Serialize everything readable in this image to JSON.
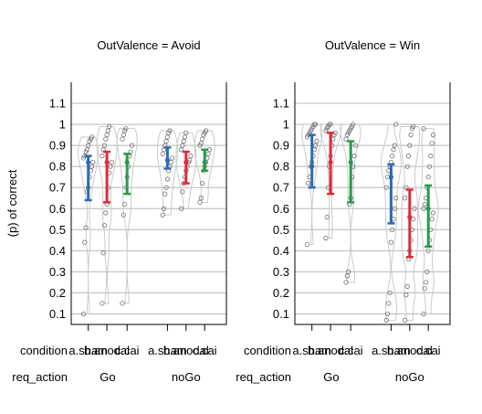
{
  "chart_data": {
    "type": "violin",
    "ylabel": "(p) of correct",
    "ylim": [
      0.05,
      1.2
    ],
    "yticks": [
      0.1,
      0.2,
      0.3,
      0.4,
      0.5,
      0.6,
      0.7,
      0.8,
      0.9,
      1,
      1.1
    ],
    "ytick_labels": [
      "0.1",
      "0.2",
      "0.3",
      "0.4",
      "0.5",
      "0.6",
      "0.7",
      "0.8",
      "0.9",
      "1",
      "1.1"
    ],
    "grid": true,
    "x_row_titles": [
      "condition",
      "req_action"
    ],
    "colors": {
      "a.sham": "#2b6cb0",
      "b.anodal": "#e02a3a",
      "c.cai": "#2a9a4a"
    },
    "panels": [
      {
        "title": "OutValence = Avoid",
        "groups": [
          {
            "label": "Go",
            "conditions": [
              {
                "label": "a.sham",
                "median": 0.82,
                "ci_low": 0.64,
                "ci_high": 0.85,
                "points": [
                  0.94,
                  0.93,
                  0.92,
                  0.9,
                  0.88,
                  0.87,
                  0.85,
                  0.84,
                  0.82,
                  0.8,
                  0.78,
                  0.75,
                  0.7,
                  0.68,
                  0.51,
                  0.44,
                  0.1
                ]
              },
              {
                "label": "b.anodal",
                "median": 0.82,
                "ci_low": 0.63,
                "ci_high": 0.87,
                "points": [
                  0.99,
                  0.97,
                  0.95,
                  0.93,
                  0.9,
                  0.88,
                  0.85,
                  0.82,
                  0.8,
                  0.77,
                  0.7,
                  0.62,
                  0.58,
                  0.52,
                  0.39,
                  0.15
                ]
              },
              {
                "label": "c.cai",
                "median": 0.82,
                "ci_low": 0.67,
                "ci_high": 0.86,
                "points": [
                  0.98,
                  0.97,
                  0.95,
                  0.93,
                  0.9,
                  0.87,
                  0.85,
                  0.8,
                  0.75,
                  0.7,
                  0.62,
                  0.57,
                  0.15
                ]
              }
            ]
          },
          {
            "label": "noGo",
            "conditions": [
              {
                "label": "a.sham",
                "median": 0.83,
                "ci_low": 0.79,
                "ci_high": 0.89,
                "points": [
                  0.97,
                  0.96,
                  0.94,
                  0.92,
                  0.9,
                  0.88,
                  0.86,
                  0.84,
                  0.82,
                  0.8,
                  0.78,
                  0.74,
                  0.7,
                  0.67,
                  0.6,
                  0.57
                ]
              },
              {
                "label": "b.anodal",
                "median": 0.82,
                "ci_low": 0.72,
                "ci_high": 0.87,
                "points": [
                  0.96,
                  0.94,
                  0.92,
                  0.9,
                  0.88,
                  0.85,
                  0.83,
                  0.82,
                  0.8,
                  0.78,
                  0.75,
                  0.72,
                  0.68,
                  0.6
                ]
              },
              {
                "label": "c.cai",
                "median": 0.82,
                "ci_low": 0.78,
                "ci_high": 0.88,
                "points": [
                  0.97,
                  0.96,
                  0.95,
                  0.93,
                  0.91,
                  0.9,
                  0.88,
                  0.86,
                  0.84,
                  0.82,
                  0.8,
                  0.78,
                  0.72,
                  0.65,
                  0.63
                ]
              }
            ]
          }
        ]
      },
      {
        "title": "OutValence = Win",
        "groups": [
          {
            "label": "Go",
            "conditions": [
              {
                "label": "a.sham",
                "median": 0.8,
                "ci_low": 0.7,
                "ci_high": 0.95,
                "points": [
                  1,
                  1,
                  0.99,
                  0.98,
                  0.97,
                  0.96,
                  0.95,
                  0.94,
                  0.92,
                  0.9,
                  0.88,
                  0.85,
                  0.82,
                  0.8,
                  0.75,
                  0.72,
                  0.43
                ]
              },
              {
                "label": "b.anodal",
                "median": 0.82,
                "ci_low": 0.67,
                "ci_high": 0.96,
                "points": [
                  1,
                  1,
                  0.99,
                  0.98,
                  0.97,
                  0.96,
                  0.95,
                  0.93,
                  0.9,
                  0.85,
                  0.8,
                  0.7,
                  0.56,
                  0.46
                ]
              },
              {
                "label": "c.cai",
                "median": 0.82,
                "ci_low": 0.63,
                "ci_high": 0.92,
                "points": [
                  1,
                  0.99,
                  0.98,
                  0.97,
                  0.96,
                  0.95,
                  0.93,
                  0.9,
                  0.85,
                  0.8,
                  0.75,
                  0.65,
                  0.62,
                  0.3,
                  0.28,
                  0.25
                ]
              }
            ]
          },
          {
            "label": "noGo",
            "conditions": [
              {
                "label": "a.sham",
                "median": 0.75,
                "ci_low": 0.53,
                "ci_high": 0.81,
                "points": [
                  1,
                  0.9,
                  0.88,
                  0.85,
                  0.82,
                  0.8,
                  0.78,
                  0.75,
                  0.7,
                  0.65,
                  0.6,
                  0.55,
                  0.5,
                  0.44,
                  0.2,
                  0.15,
                  0.1,
                  0.07
                ]
              },
              {
                "label": "b.anodal",
                "median": 0.56,
                "ci_low": 0.37,
                "ci_high": 0.69,
                "points": [
                  0.99,
                  0.98,
                  0.95,
                  0.9,
                  0.85,
                  0.8,
                  0.7,
                  0.65,
                  0.6,
                  0.55,
                  0.5,
                  0.45,
                  0.4,
                  0.36,
                  0.23,
                  0.19,
                  0.07
                ]
              },
              {
                "label": "c.cai",
                "median": 0.6,
                "ci_low": 0.42,
                "ci_high": 0.71,
                "points": [
                  0.98,
                  0.95,
                  0.91,
                  0.85,
                  0.8,
                  0.75,
                  0.7,
                  0.65,
                  0.62,
                  0.6,
                  0.58,
                  0.55,
                  0.5,
                  0.45,
                  0.4,
                  0.3,
                  0.25,
                  0.22,
                  0.1
                ]
              }
            ]
          }
        ]
      }
    ]
  }
}
